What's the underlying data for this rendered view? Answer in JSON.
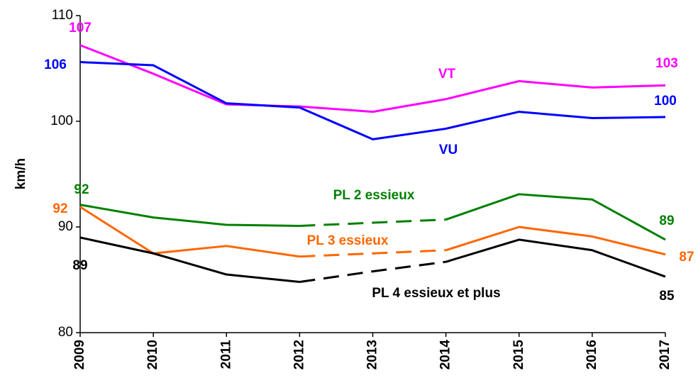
{
  "chart_data": {
    "type": "line",
    "y_label": "km/h",
    "categories": [
      "2009",
      "2010",
      "2011",
      "2012",
      "2013",
      "2014",
      "2015",
      "2016",
      "2017"
    ],
    "series": [
      {
        "name": "VT",
        "color": "#ff00ff",
        "values": [
          107.2,
          104.5,
          101.6,
          101.4,
          100.9,
          102.1,
          103.8,
          103.2,
          103.4
        ],
        "value_labels": [
          "107",
          null,
          null,
          null,
          null,
          null,
          null,
          null,
          "103"
        ]
      },
      {
        "name": "VU",
        "color": "#0000ff",
        "values": [
          105.6,
          105.3,
          101.7,
          101.3,
          98.3,
          99.3,
          100.9,
          100.3,
          100.4
        ],
        "value_labels": [
          "106",
          null,
          null,
          null,
          null,
          null,
          null,
          null,
          "100"
        ]
      },
      {
        "name": "PL 2 essieux",
        "color": "#008000",
        "values": [
          92.1,
          90.9,
          90.2,
          90.1,
          90.4,
          90.7,
          93.1,
          92.6,
          88.8
        ],
        "value_labels": [
          "92",
          null,
          null,
          null,
          null,
          null,
          null,
          null,
          "89"
        ],
        "dash_range": [
          "2012",
          "2014"
        ]
      },
      {
        "name": "PL 3 essieux",
        "color": "#ff6600",
        "values": [
          91.9,
          87.5,
          88.2,
          87.2,
          87.5,
          87.8,
          90.0,
          89.1,
          87.4
        ],
        "value_labels": [
          "92",
          null,
          null,
          null,
          null,
          null,
          null,
          null,
          "87"
        ],
        "dash_range": [
          "2012",
          "2014"
        ]
      },
      {
        "name": "PL 4 essieux et plus",
        "color": "#000000",
        "values": [
          89.0,
          87.5,
          85.5,
          84.8,
          85.8,
          86.7,
          88.8,
          87.8,
          85.3
        ],
        "value_labels": [
          "89",
          null,
          null,
          null,
          null,
          null,
          null,
          null,
          "85"
        ],
        "dash_range": [
          "2012",
          "2014"
        ]
      }
    ],
    "ylim": [
      80,
      110
    ],
    "yticks": [
      80,
      90,
      100,
      110
    ],
    "grid": false
  }
}
